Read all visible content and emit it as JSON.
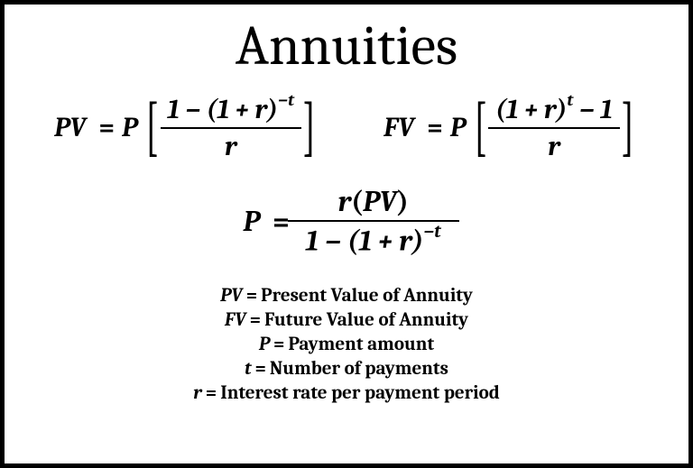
{
  "title": "Annuities",
  "formulas": {
    "pv": {
      "lhs": "PV",
      "coef": "P",
      "numerator_prefix": "1 − (1 + ",
      "numerator_var": "r",
      "numerator_suffix": ")",
      "exponent": "−t",
      "denominator": "r"
    },
    "fv": {
      "lhs": "FV",
      "coef": "P",
      "numerator_prefix": "(1 + ",
      "numerator_var": "r",
      "numerator_close": ")",
      "exponent": "t",
      "numerator_suffix": " − 1",
      "denominator": "r"
    },
    "p": {
      "lhs": "P",
      "num_r": "r",
      "num_open": "(",
      "num_pv": "PV",
      "num_close": ")",
      "den_prefix": "1 − (1 + ",
      "den_var": "r",
      "den_close": ")",
      "den_exponent": "−t"
    }
  },
  "definitions": [
    {
      "sym": "PV",
      "desc": "Present Value of Annuity"
    },
    {
      "sym": "FV",
      "desc": "Future Value of Annuity"
    },
    {
      "sym": "P",
      "desc": "Payment amount"
    },
    {
      "sym": "t",
      "desc": "Number of payments"
    },
    {
      "sym": "r",
      "desc": "Interest rate per payment period"
    }
  ],
  "colors": {
    "border": "#000000",
    "background": "#ffffff",
    "text": "#000000"
  }
}
